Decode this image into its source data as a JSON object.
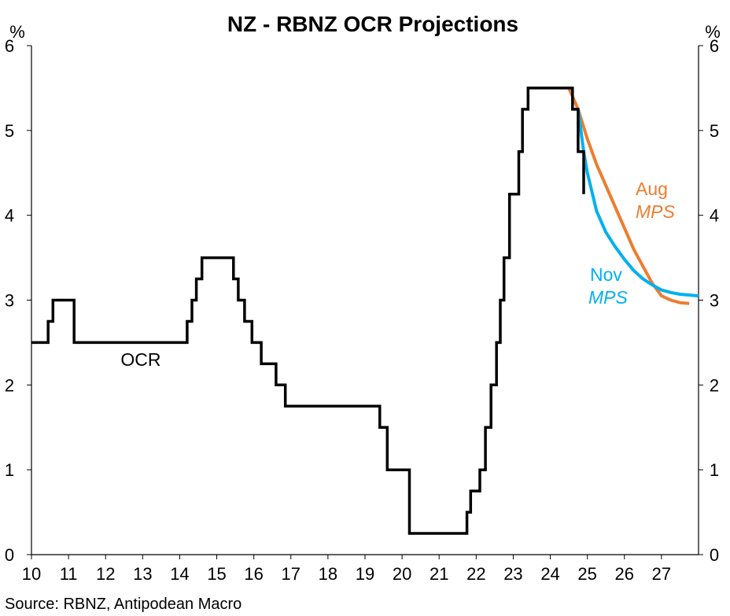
{
  "chart_data": {
    "type": "line",
    "title": "NZ - RBNZ OCR Projections",
    "y_unit_left": "%",
    "y_unit_right": "%",
    "ylim": [
      0,
      6
    ],
    "yticks": [
      0,
      1,
      2,
      3,
      4,
      5,
      6
    ],
    "xlim": [
      10,
      28
    ],
    "xticks": [
      10,
      11,
      12,
      13,
      14,
      15,
      16,
      17,
      18,
      19,
      20,
      21,
      22,
      23,
      24,
      25,
      26,
      27
    ],
    "grid": false,
    "series": [
      {
        "name": "OCR",
        "color": "#000000",
        "style": "step",
        "points": [
          [
            10.0,
            2.5
          ],
          [
            10.45,
            2.5
          ],
          [
            10.45,
            2.75
          ],
          [
            10.58,
            2.75
          ],
          [
            10.58,
            3.0
          ],
          [
            11.15,
            3.0
          ],
          [
            11.15,
            2.5
          ],
          [
            14.2,
            2.5
          ],
          [
            14.2,
            2.75
          ],
          [
            14.33,
            2.75
          ],
          [
            14.33,
            3.0
          ],
          [
            14.45,
            3.0
          ],
          [
            14.45,
            3.25
          ],
          [
            14.6,
            3.25
          ],
          [
            14.6,
            3.5
          ],
          [
            15.45,
            3.5
          ],
          [
            15.45,
            3.25
          ],
          [
            15.58,
            3.25
          ],
          [
            15.58,
            3.0
          ],
          [
            15.75,
            3.0
          ],
          [
            15.75,
            2.75
          ],
          [
            15.95,
            2.75
          ],
          [
            15.95,
            2.5
          ],
          [
            16.2,
            2.5
          ],
          [
            16.2,
            2.25
          ],
          [
            16.6,
            2.25
          ],
          [
            16.6,
            2.0
          ],
          [
            16.85,
            2.0
          ],
          [
            16.85,
            1.75
          ],
          [
            19.4,
            1.75
          ],
          [
            19.4,
            1.5
          ],
          [
            19.6,
            1.5
          ],
          [
            19.6,
            1.0
          ],
          [
            20.2,
            1.0
          ],
          [
            20.2,
            0.25
          ],
          [
            21.75,
            0.25
          ],
          [
            21.75,
            0.5
          ],
          [
            21.85,
            0.5
          ],
          [
            21.85,
            0.75
          ],
          [
            22.1,
            0.75
          ],
          [
            22.1,
            1.0
          ],
          [
            22.25,
            1.0
          ],
          [
            22.25,
            1.5
          ],
          [
            22.4,
            1.5
          ],
          [
            22.4,
            2.0
          ],
          [
            22.55,
            2.0
          ],
          [
            22.55,
            2.5
          ],
          [
            22.65,
            2.5
          ],
          [
            22.65,
            3.0
          ],
          [
            22.75,
            3.0
          ],
          [
            22.75,
            3.5
          ],
          [
            22.9,
            3.5
          ],
          [
            22.9,
            4.25
          ],
          [
            23.15,
            4.25
          ],
          [
            23.15,
            4.75
          ],
          [
            23.25,
            4.75
          ],
          [
            23.25,
            5.25
          ],
          [
            23.4,
            5.25
          ],
          [
            23.4,
            5.5
          ],
          [
            24.6,
            5.5
          ],
          [
            24.6,
            5.25
          ],
          [
            24.75,
            5.25
          ],
          [
            24.75,
            4.75
          ],
          [
            24.9,
            4.75
          ],
          [
            24.9,
            4.25
          ]
        ]
      },
      {
        "name": "Aug MPS",
        "label_line1": "Aug",
        "label_line2": "MPS",
        "color": "#ED7D31",
        "style": "line",
        "points": [
          [
            24.5,
            5.5
          ],
          [
            24.75,
            5.25
          ],
          [
            25.0,
            4.9
          ],
          [
            25.25,
            4.6
          ],
          [
            25.5,
            4.35
          ],
          [
            25.75,
            4.1
          ],
          [
            26.0,
            3.85
          ],
          [
            26.25,
            3.6
          ],
          [
            26.5,
            3.4
          ],
          [
            26.75,
            3.2
          ],
          [
            27.0,
            3.05
          ],
          [
            27.25,
            3.0
          ],
          [
            27.5,
            2.97
          ],
          [
            27.75,
            2.96
          ]
        ]
      },
      {
        "name": "Nov MPS",
        "label_line1": "Nov",
        "label_line2": "MPS",
        "color": "#00B0F0",
        "style": "line",
        "points": [
          [
            24.75,
            5.25
          ],
          [
            24.9,
            4.75
          ],
          [
            25.0,
            4.5
          ],
          [
            25.25,
            4.05
          ],
          [
            25.5,
            3.8
          ],
          [
            25.75,
            3.63
          ],
          [
            26.0,
            3.48
          ],
          [
            26.25,
            3.35
          ],
          [
            26.5,
            3.25
          ],
          [
            26.75,
            3.18
          ],
          [
            27.0,
            3.12
          ],
          [
            27.25,
            3.09
          ],
          [
            27.5,
            3.07
          ],
          [
            27.75,
            3.06
          ],
          [
            28.0,
            3.05
          ]
        ]
      }
    ],
    "annotations": [
      {
        "text": "OCR",
        "x": 13.0,
        "y": 2.3
      }
    ],
    "source": "Source: RBNZ, Antipodean Macro"
  }
}
